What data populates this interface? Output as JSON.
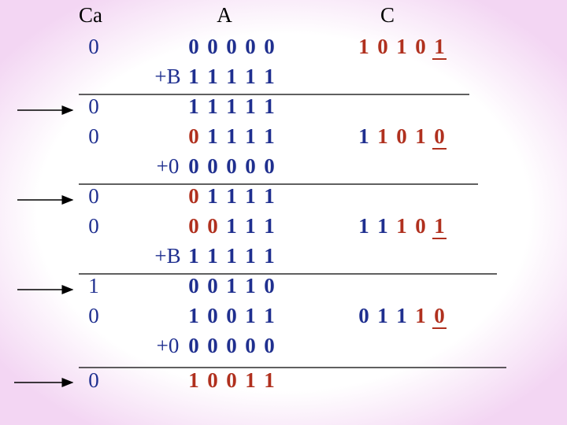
{
  "header": {
    "ca": "Ca",
    "a": "A",
    "c": "C"
  },
  "rows": [
    {
      "ca": "0",
      "a": [
        "0",
        "0",
        "0",
        "0",
        "0"
      ],
      "a_colors": [
        "#1f2f8f",
        "#1f2f8f",
        "#1f2f8f",
        "#1f2f8f",
        "#1f2f8f"
      ],
      "c": [
        "1",
        "0",
        "1",
        "0",
        "1"
      ],
      "c_colors": [
        "#b0301e",
        "#b0301e",
        "#b0301e",
        "#b0301e",
        "#b0301e"
      ]
    },
    {
      "op": "+B",
      "a": [
        "1",
        "1",
        "1",
        "1",
        "1"
      ],
      "a_colors": [
        "#1f2f8f",
        "#1f2f8f",
        "#1f2f8f",
        "#1f2f8f",
        "#1f2f8f"
      ]
    },
    {
      "ca": "0",
      "a": [
        "1",
        "1",
        "1",
        "1",
        "1"
      ],
      "a_colors": [
        "#1f2f8f",
        "#1f2f8f",
        "#1f2f8f",
        "#1f2f8f",
        "#1f2f8f"
      ]
    },
    {
      "ca": "0",
      "a": [
        "0",
        "1",
        "1",
        "1",
        "1"
      ],
      "a_colors": [
        "#b0301e",
        "#1f2f8f",
        "#1f2f8f",
        "#1f2f8f",
        "#1f2f8f"
      ],
      "c": [
        "1",
        "1",
        "0",
        "1",
        "0"
      ],
      "c_colors": [
        "#1f2f8f",
        "#b0301e",
        "#b0301e",
        "#b0301e",
        "#b0301e"
      ]
    },
    {
      "op": "+0",
      "a": [
        "0",
        "0",
        "0",
        "0",
        "0"
      ],
      "a_colors": [
        "#1f2f8f",
        "#1f2f8f",
        "#1f2f8f",
        "#1f2f8f",
        "#1f2f8f"
      ]
    },
    {
      "ca": "0",
      "a": [
        "0",
        "1",
        "1",
        "1",
        "1"
      ],
      "a_colors": [
        "#b0301e",
        "#1f2f8f",
        "#1f2f8f",
        "#1f2f8f",
        "#1f2f8f"
      ]
    },
    {
      "ca": "0",
      "a": [
        "0",
        "0",
        "1",
        "1",
        "1"
      ],
      "a_colors": [
        "#b0301e",
        "#b0301e",
        "#1f2f8f",
        "#1f2f8f",
        "#1f2f8f"
      ],
      "c": [
        "1",
        "1",
        "1",
        "0",
        "1"
      ],
      "c_colors": [
        "#1f2f8f",
        "#1f2f8f",
        "#b0301e",
        "#b0301e",
        "#b0301e"
      ]
    },
    {
      "op": "+B",
      "a": [
        "1",
        "1",
        "1",
        "1",
        "1"
      ],
      "a_colors": [
        "#1f2f8f",
        "#1f2f8f",
        "#1f2f8f",
        "#1f2f8f",
        "#1f2f8f"
      ]
    },
    {
      "ca": "1",
      "a": [
        "0",
        "0",
        "1",
        "1",
        "0"
      ],
      "a_colors": [
        "#1f2f8f",
        "#1f2f8f",
        "#1f2f8f",
        "#1f2f8f",
        "#1f2f8f"
      ]
    },
    {
      "ca": "0",
      "a": [
        "1",
        "0",
        "0",
        "1",
        "1"
      ],
      "a_colors": [
        "#1f2f8f",
        "#1f2f8f",
        "#1f2f8f",
        "#1f2f8f",
        "#1f2f8f"
      ],
      "c": [
        "0",
        "1",
        "1",
        "1",
        "0"
      ],
      "c_colors": [
        "#1f2f8f",
        "#1f2f8f",
        "#1f2f8f",
        "#b0301e",
        "#b0301e"
      ]
    },
    {
      "op": "+0",
      "a": [
        "0",
        "0",
        "0",
        "0",
        "0"
      ],
      "a_colors": [
        "#1f2f8f",
        "#1f2f8f",
        "#1f2f8f",
        "#1f2f8f",
        "#1f2f8f"
      ]
    },
    {
      "ca": "0",
      "a": [
        "1",
        "0",
        "0",
        "1",
        "1"
      ],
      "a_colors": [
        "#b0301e",
        "#b0301e",
        "#b0301e",
        "#b0301e",
        "#b0301e"
      ]
    }
  ]
}
